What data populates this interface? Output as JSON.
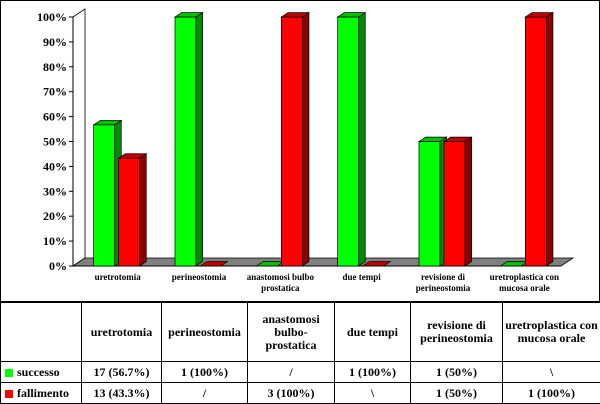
{
  "colors": {
    "successo": "#00ff00",
    "fallimento": "#ff0000",
    "floor": "#808080",
    "grid": "#000000"
  },
  "chart_data": {
    "type": "bar",
    "categories": [
      "uretrotomia",
      "perineostomia",
      "anastomosi bulbo prostatica",
      "due tempi",
      "revisione di perineostomia",
      "uretroplastica con mucosa orale"
    ],
    "series": [
      {
        "name": "successo",
        "values": [
          56.7,
          100,
          0,
          100,
          50,
          0
        ]
      },
      {
        "name": "fallimento",
        "values": [
          43.3,
          0,
          100,
          0,
          50,
          100
        ]
      }
    ],
    "yticks": [
      "0%",
      "10%",
      "20%",
      "30%",
      "40%",
      "50%",
      "60%",
      "70%",
      "80%",
      "90%",
      "100%"
    ],
    "ylim": [
      0,
      100
    ],
    "grid": false,
    "style": "3d-column"
  },
  "table": {
    "headers": [
      "uretrotomia",
      "perineostomia",
      "anastomosi bulbo-prostatica",
      "due tempi",
      "revisione di perineostomia",
      "uretroplastica con mucosa orale"
    ],
    "rows": [
      {
        "label": "successo",
        "cells": [
          "17 (56.7%)",
          "1 (100%)",
          "/",
          "1 (100%)",
          "1 (50%)",
          "\\"
        ]
      },
      {
        "label": "fallimento",
        "cells": [
          "13 (43.3%)",
          "/",
          "3 (100%)",
          "\\",
          "1 (50%)",
          "1 (100%)"
        ]
      }
    ]
  }
}
